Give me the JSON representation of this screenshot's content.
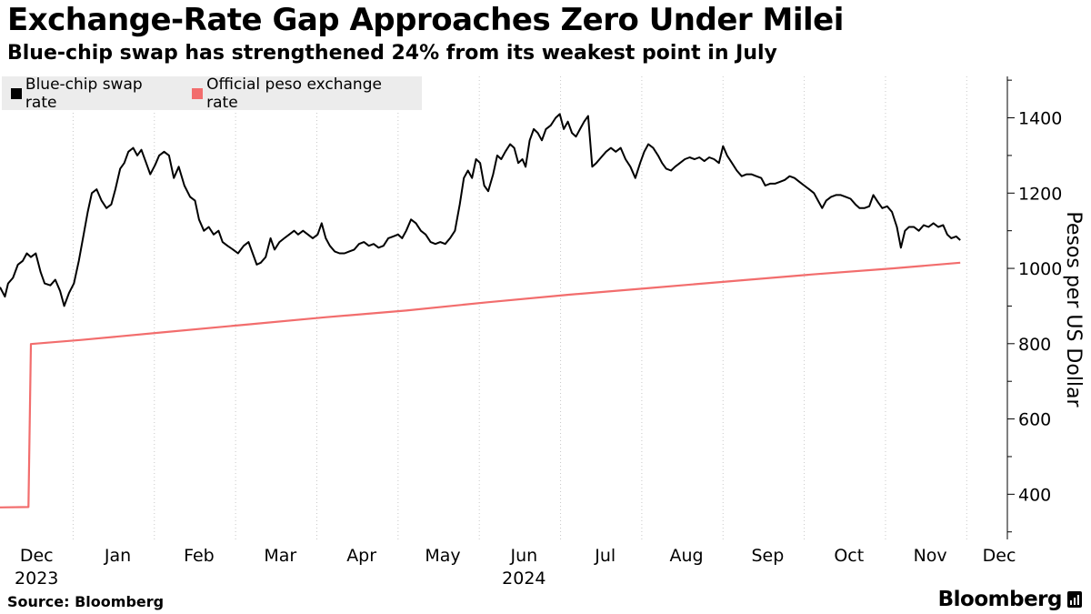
{
  "chart_data": {
    "type": "line",
    "title": "Exchange-Rate Gap Approaches Zero Under Milei",
    "subtitle": "Blue-chip swap has strengthened 24% from its weakest point in July",
    "ylabel": "Pesos per US Dollar",
    "ylim": [
      280,
      1510
    ],
    "yticks": [
      400,
      600,
      800,
      1000,
      1200,
      1400
    ],
    "xlim": [
      0,
      12.4
    ],
    "xticks": [
      {
        "label": "Dec",
        "year": "2023",
        "pos": 0.45
      },
      {
        "label": "Jan",
        "year": "",
        "pos": 1.45
      },
      {
        "label": "Feb",
        "year": "",
        "pos": 2.45
      },
      {
        "label": "Mar",
        "year": "",
        "pos": 3.45
      },
      {
        "label": "Apr",
        "year": "",
        "pos": 4.45
      },
      {
        "label": "May",
        "year": "",
        "pos": 5.45
      },
      {
        "label": "Jun",
        "year": "2024",
        "pos": 6.45
      },
      {
        "label": "Jul",
        "year": "",
        "pos": 7.45
      },
      {
        "label": "Aug",
        "year": "",
        "pos": 8.45
      },
      {
        "label": "Sep",
        "year": "",
        "pos": 9.45
      },
      {
        "label": "Oct",
        "year": "",
        "pos": 10.45
      },
      {
        "label": "Nov",
        "year": "",
        "pos": 11.45
      },
      {
        "label": "Dec",
        "year": "",
        "pos": 12.3
      }
    ],
    "month_boundaries": [
      0.9,
      1.9,
      2.9,
      3.9,
      4.9,
      5.9,
      6.9,
      7.9,
      8.9,
      9.9,
      10.9,
      11.9
    ],
    "legend_position": "top-left",
    "series": [
      {
        "name": "Blue-chip swap rate",
        "color": "#000000",
        "points": [
          [
            0.0,
            950
          ],
          [
            0.06,
            925
          ],
          [
            0.1,
            960
          ],
          [
            0.16,
            975
          ],
          [
            0.22,
            1010
          ],
          [
            0.28,
            1020
          ],
          [
            0.33,
            1040
          ],
          [
            0.38,
            1030
          ],
          [
            0.44,
            1040
          ],
          [
            0.5,
            990
          ],
          [
            0.55,
            960
          ],
          [
            0.62,
            955
          ],
          [
            0.68,
            970
          ],
          [
            0.74,
            940
          ],
          [
            0.79,
            900
          ],
          [
            0.85,
            935
          ],
          [
            0.91,
            960
          ],
          [
            0.97,
            1020
          ],
          [
            1.03,
            1090
          ],
          [
            1.08,
            1150
          ],
          [
            1.13,
            1200
          ],
          [
            1.19,
            1210
          ],
          [
            1.25,
            1180
          ],
          [
            1.31,
            1160
          ],
          [
            1.37,
            1170
          ],
          [
            1.42,
            1210
          ],
          [
            1.48,
            1265
          ],
          [
            1.53,
            1280
          ],
          [
            1.58,
            1310
          ],
          [
            1.64,
            1320
          ],
          [
            1.69,
            1300
          ],
          [
            1.74,
            1315
          ],
          [
            1.8,
            1280
          ],
          [
            1.85,
            1250
          ],
          [
            1.91,
            1275
          ],
          [
            1.96,
            1300
          ],
          [
            2.02,
            1310
          ],
          [
            2.08,
            1300
          ],
          [
            2.14,
            1240
          ],
          [
            2.2,
            1270
          ],
          [
            2.27,
            1220
          ],
          [
            2.34,
            1190
          ],
          [
            2.4,
            1180
          ],
          [
            2.45,
            1130
          ],
          [
            2.51,
            1100
          ],
          [
            2.57,
            1110
          ],
          [
            2.63,
            1090
          ],
          [
            2.69,
            1100
          ],
          [
            2.74,
            1070
          ],
          [
            2.8,
            1060
          ],
          [
            2.87,
            1050
          ],
          [
            2.93,
            1040
          ],
          [
            3.0,
            1060
          ],
          [
            3.06,
            1070
          ],
          [
            3.11,
            1040
          ],
          [
            3.16,
            1010
          ],
          [
            3.21,
            1015
          ],
          [
            3.27,
            1030
          ],
          [
            3.33,
            1080
          ],
          [
            3.38,
            1050
          ],
          [
            3.44,
            1070
          ],
          [
            3.5,
            1080
          ],
          [
            3.56,
            1090
          ],
          [
            3.62,
            1100
          ],
          [
            3.67,
            1090
          ],
          [
            3.73,
            1100
          ],
          [
            3.79,
            1090
          ],
          [
            3.85,
            1080
          ],
          [
            3.91,
            1090
          ],
          [
            3.96,
            1120
          ],
          [
            4.01,
            1080
          ],
          [
            4.06,
            1060
          ],
          [
            4.12,
            1045
          ],
          [
            4.18,
            1040
          ],
          [
            4.24,
            1040
          ],
          [
            4.3,
            1045
          ],
          [
            4.36,
            1050
          ],
          [
            4.42,
            1065
          ],
          [
            4.48,
            1070
          ],
          [
            4.54,
            1060
          ],
          [
            4.6,
            1065
          ],
          [
            4.66,
            1055
          ],
          [
            4.72,
            1060
          ],
          [
            4.78,
            1080
          ],
          [
            4.84,
            1085
          ],
          [
            4.9,
            1090
          ],
          [
            4.95,
            1080
          ],
          [
            5.0,
            1100
          ],
          [
            5.06,
            1130
          ],
          [
            5.12,
            1120
          ],
          [
            5.18,
            1100
          ],
          [
            5.24,
            1090
          ],
          [
            5.3,
            1070
          ],
          [
            5.36,
            1065
          ],
          [
            5.42,
            1070
          ],
          [
            5.48,
            1065
          ],
          [
            5.54,
            1080
          ],
          [
            5.6,
            1100
          ],
          [
            5.66,
            1170
          ],
          [
            5.71,
            1240
          ],
          [
            5.76,
            1260
          ],
          [
            5.81,
            1240
          ],
          [
            5.86,
            1290
          ],
          [
            5.91,
            1280
          ],
          [
            5.96,
            1220
          ],
          [
            6.01,
            1205
          ],
          [
            6.07,
            1250
          ],
          [
            6.12,
            1300
          ],
          [
            6.17,
            1290
          ],
          [
            6.22,
            1310
          ],
          [
            6.28,
            1330
          ],
          [
            6.33,
            1320
          ],
          [
            6.38,
            1280
          ],
          [
            6.43,
            1290
          ],
          [
            6.47,
            1270
          ],
          [
            6.52,
            1340
          ],
          [
            6.57,
            1370
          ],
          [
            6.62,
            1360
          ],
          [
            6.67,
            1340
          ],
          [
            6.72,
            1370
          ],
          [
            6.78,
            1380
          ],
          [
            6.84,
            1400
          ],
          [
            6.89,
            1410
          ],
          [
            6.94,
            1370
          ],
          [
            6.99,
            1390
          ],
          [
            7.04,
            1360
          ],
          [
            7.09,
            1350
          ],
          [
            7.14,
            1370
          ],
          [
            7.19,
            1390
          ],
          [
            7.24,
            1405
          ],
          [
            7.29,
            1270
          ],
          [
            7.34,
            1280
          ],
          [
            7.4,
            1295
          ],
          [
            7.46,
            1310
          ],
          [
            7.52,
            1320
          ],
          [
            7.58,
            1310
          ],
          [
            7.64,
            1320
          ],
          [
            7.7,
            1290
          ],
          [
            7.76,
            1270
          ],
          [
            7.82,
            1240
          ],
          [
            7.88,
            1280
          ],
          [
            7.93,
            1310
          ],
          [
            7.98,
            1330
          ],
          [
            8.04,
            1320
          ],
          [
            8.1,
            1300
          ],
          [
            8.15,
            1280
          ],
          [
            8.2,
            1265
          ],
          [
            8.26,
            1260
          ],
          [
            8.31,
            1270
          ],
          [
            8.37,
            1280
          ],
          [
            8.43,
            1290
          ],
          [
            8.49,
            1295
          ],
          [
            8.55,
            1290
          ],
          [
            8.61,
            1295
          ],
          [
            8.67,
            1285
          ],
          [
            8.73,
            1295
          ],
          [
            8.79,
            1290
          ],
          [
            8.85,
            1280
          ],
          [
            8.9,
            1325
          ],
          [
            8.95,
            1300
          ],
          [
            9.01,
            1280
          ],
          [
            9.07,
            1260
          ],
          [
            9.13,
            1245
          ],
          [
            9.19,
            1250
          ],
          [
            9.25,
            1250
          ],
          [
            9.31,
            1245
          ],
          [
            9.37,
            1240
          ],
          [
            9.42,
            1220
          ],
          [
            9.48,
            1225
          ],
          [
            9.54,
            1225
          ],
          [
            9.6,
            1230
          ],
          [
            9.66,
            1235
          ],
          [
            9.72,
            1245
          ],
          [
            9.78,
            1240
          ],
          [
            9.84,
            1230
          ],
          [
            9.9,
            1220
          ],
          [
            9.96,
            1210
          ],
          [
            10.02,
            1200
          ],
          [
            10.07,
            1180
          ],
          [
            10.12,
            1160
          ],
          [
            10.17,
            1180
          ],
          [
            10.23,
            1190
          ],
          [
            10.29,
            1195
          ],
          [
            10.35,
            1195
          ],
          [
            10.41,
            1190
          ],
          [
            10.47,
            1185
          ],
          [
            10.53,
            1170
          ],
          [
            10.58,
            1160
          ],
          [
            10.64,
            1160
          ],
          [
            10.7,
            1165
          ],
          [
            10.75,
            1195
          ],
          [
            10.81,
            1175
          ],
          [
            10.86,
            1160
          ],
          [
            10.92,
            1165
          ],
          [
            10.98,
            1150
          ],
          [
            11.04,
            1110
          ],
          [
            11.09,
            1055
          ],
          [
            11.14,
            1100
          ],
          [
            11.19,
            1110
          ],
          [
            11.25,
            1110
          ],
          [
            11.31,
            1100
          ],
          [
            11.37,
            1115
          ],
          [
            11.43,
            1110
          ],
          [
            11.49,
            1120
          ],
          [
            11.55,
            1110
          ],
          [
            11.61,
            1115
          ],
          [
            11.66,
            1090
          ],
          [
            11.71,
            1080
          ],
          [
            11.77,
            1085
          ],
          [
            11.82,
            1075
          ]
        ]
      },
      {
        "name": "Official peso exchange rate",
        "color": "#f26d6d",
        "points": [
          [
            0.0,
            365
          ],
          [
            0.35,
            366
          ],
          [
            0.38,
            799
          ],
          [
            1.0,
            810
          ],
          [
            2.0,
            830
          ],
          [
            3.0,
            850
          ],
          [
            4.0,
            870
          ],
          [
            5.0,
            888
          ],
          [
            6.0,
            910
          ],
          [
            7.0,
            930
          ],
          [
            8.0,
            948
          ],
          [
            9.0,
            966
          ],
          [
            10.0,
            984
          ],
          [
            11.0,
            1000
          ],
          [
            11.82,
            1015
          ]
        ]
      }
    ]
  },
  "footer": {
    "source": "Source: Bloomberg",
    "brand": "Bloomberg"
  }
}
